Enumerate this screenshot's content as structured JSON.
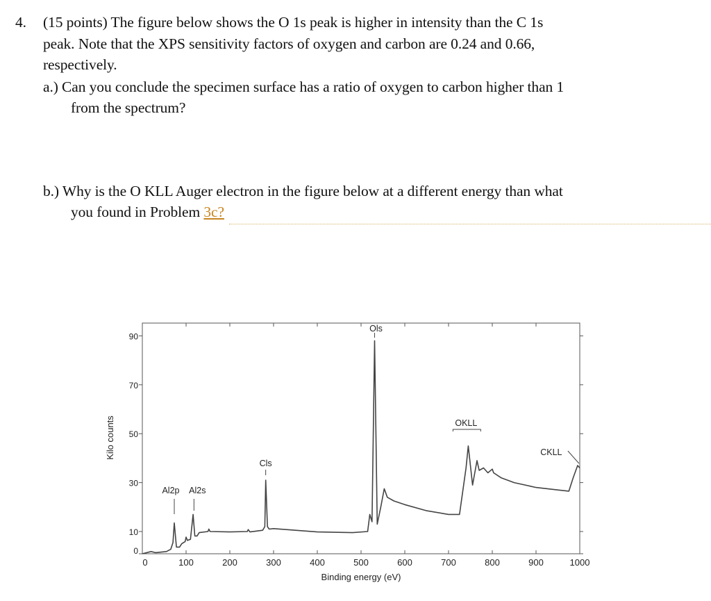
{
  "question": {
    "number": "4.",
    "line1": "(15 points) The figure below shows the O 1s peak is higher in intensity than the C 1s",
    "line2": "peak. Note that the XPS sensitivity factors of oxygen and carbon are 0.24 and 0.66,",
    "line3": "respectively.",
    "a_line1": "a.) Can you conclude the specimen surface has a ratio of oxygen to carbon higher than 1",
    "a_line2": "from the spectrum?",
    "b_line1": "b.) Why is the O KLL Auger electron in the figure below at a different energy than what",
    "b_line2": "you found in Problem",
    "b_link": "3c?"
  },
  "colors": {
    "link": "#c8841d",
    "line": "#333333"
  },
  "chart_data": {
    "type": "line",
    "xlabel": "Binding energy (eV)",
    "ylabel": "Kilo counts",
    "xlim": [
      0,
      1000
    ],
    "ylim": [
      0,
      95
    ],
    "xticks": [
      0,
      100,
      200,
      300,
      400,
      500,
      600,
      700,
      800,
      900,
      1000
    ],
    "yticks": [
      0,
      10,
      30,
      50,
      70,
      90
    ],
    "grid": false,
    "annotations": [
      {
        "text": "Al2p",
        "x": 73
      },
      {
        "text": "Al2s",
        "x": 118
      },
      {
        "text": "Cls",
        "x": 282
      },
      {
        "text": "Ols",
        "x": 531
      },
      {
        "text": "OKLL",
        "x": 745
      },
      {
        "text": "CKLL",
        "x": 995
      }
    ],
    "x": [
      0,
      20,
      30,
      55,
      65,
      70,
      73,
      78,
      85,
      90,
      98,
      100,
      103,
      110,
      116,
      120,
      125,
      130,
      150,
      152,
      155,
      200,
      240,
      242,
      246,
      275,
      280,
      282,
      286,
      290,
      300,
      350,
      400,
      480,
      515,
      520,
      525,
      531,
      537,
      545,
      553,
      560,
      575,
      600,
      650,
      700,
      725,
      740,
      745,
      755,
      765,
      770,
      780,
      790,
      800,
      803,
      820,
      850,
      900,
      950,
      975,
      985,
      995,
      1000
    ],
    "y": [
      0,
      1,
      0.5,
      1,
      2,
      5,
      13.5,
      3,
      3,
      4.5,
      5.5,
      7.5,
      6,
      6.5,
      17,
      8,
      8,
      9.5,
      10,
      11,
      10,
      9.8,
      10,
      10.8,
      9.8,
      10.5,
      12,
      31,
      12,
      11,
      11.2,
      10.5,
      9.8,
      9.5,
      10,
      17,
      14,
      88,
      13,
      20,
      27.5,
      24,
      22.5,
      21,
      18.5,
      17,
      17,
      36,
      45,
      29,
      39,
      35,
      36,
      34,
      35.5,
      34,
      32,
      30,
      28,
      27,
      26.5,
      32,
      37,
      36
    ]
  }
}
